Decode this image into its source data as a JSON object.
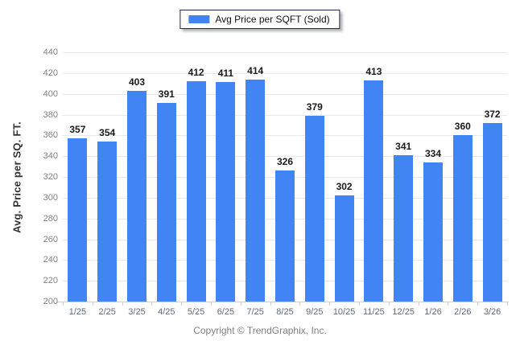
{
  "chart_data": {
    "type": "bar",
    "title": "",
    "legend": {
      "label": "Avg Price per SQFT (Sold)",
      "position": "top",
      "swatch_color": "#4184f3"
    },
    "categories": [
      "1/25",
      "2/25",
      "3/25",
      "4/25",
      "5/25",
      "6/25",
      "7/25",
      "8/25",
      "9/25",
      "10/25",
      "11/25",
      "12/25",
      "1/26",
      "2/26",
      "3/26"
    ],
    "values": [
      357,
      354,
      403,
      391,
      412,
      411,
      414,
      326,
      379,
      302,
      413,
      341,
      334,
      360,
      372
    ],
    "xlabel": "",
    "ylabel": "Avg. Price per SQ. FT.",
    "ylim": [
      200,
      440
    ],
    "ytick_step": 20,
    "grid": true,
    "bar_color": "#4184f3",
    "value_labels_shown": true
  },
  "footer": {
    "copyright": "Copyright © TrendGraphix, Inc."
  }
}
